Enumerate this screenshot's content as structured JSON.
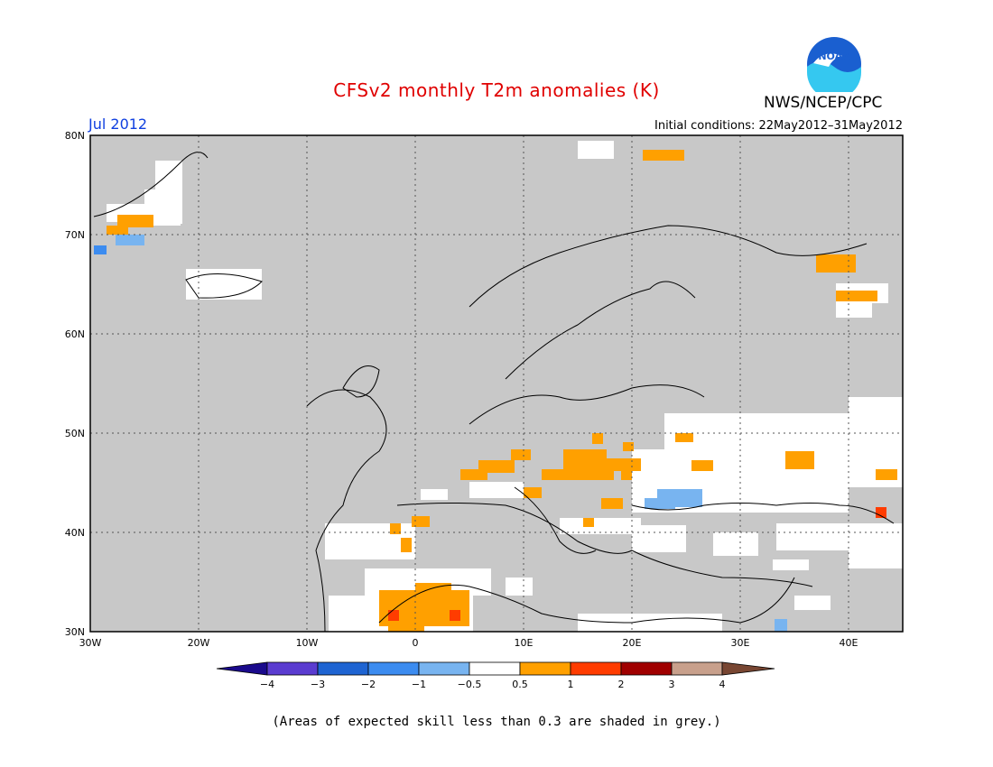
{
  "header": {
    "title": "CFSv2 monthly T2m anomalies (K)",
    "organization": "NWS/NCEP/CPC",
    "logo_text": "NOAA",
    "month": "Jul 2012",
    "initial_conditions": "Initial conditions: 22May2012–31May2012"
  },
  "map": {
    "lon_range": [
      -30,
      45
    ],
    "lat_range": [
      30,
      80
    ],
    "lat_labels": [
      "30N",
      "40N",
      "50N",
      "60N",
      "70N",
      "80N"
    ],
    "lon_labels": [
      "30W",
      "20W",
      "10W",
      "0",
      "10E",
      "20E",
      "30E",
      "40E"
    ],
    "background_color": "#c8c8c8",
    "gridlines": "dotted"
  },
  "colorbar": {
    "labels": [
      "−4",
      "−3",
      "−2",
      "−1",
      "−0.5",
      "0.5",
      "1",
      "2",
      "3",
      "4"
    ],
    "colors": [
      "#1a0a8c",
      "#5a3cd0",
      "#1e64d2",
      "#3c8cf0",
      "#78b4f0",
      "#ffffff",
      "#ffa000",
      "#ff3c00",
      "#a00000",
      "#c8a08c",
      "#784632"
    ]
  },
  "footnote": "(Areas of expected skill less than 0.3 are shaded in grey.)"
}
